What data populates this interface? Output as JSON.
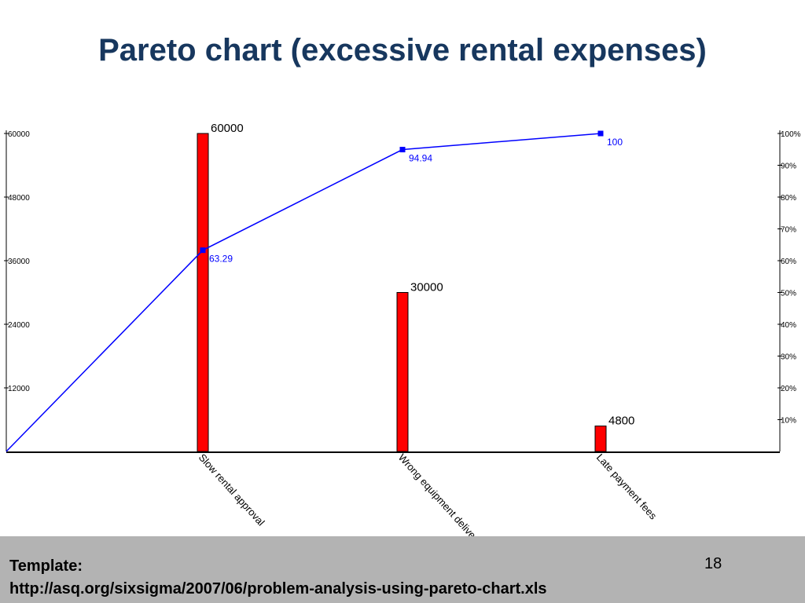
{
  "slide": {
    "title": "Pareto chart (excessive rental expenses)",
    "template_label": "Template:",
    "template_url": "http://asq.org/sixsigma/2007/06/problem-analysis-using-pareto-chart.xls",
    "page_number": "18"
  },
  "colors": {
    "title": "#17375e",
    "bar": "#ff0000",
    "line": "#0000ff",
    "footer": "#b3b3b3"
  },
  "chart_data": {
    "type": "bar",
    "categories": [
      "Slow rental approval",
      "Wrong equipment delivered",
      "Late payment fees"
    ],
    "category_tick_labels": [
      "Slow rental approval",
      "Wrong equipment deliver",
      "Late payment fees"
    ],
    "values": [
      60000,
      30000,
      4800
    ],
    "value_labels": [
      "60000",
      "30000",
      "4800"
    ],
    "cumulative_percent": [
      63.29,
      94.94,
      100
    ],
    "cumulative_labels": [
      "63.29",
      "94.94",
      "100"
    ],
    "left_axis": {
      "ylim": [
        0,
        60000
      ],
      "ticks": [
        "12000",
        "24000",
        "36000",
        "48000",
        "60000"
      ]
    },
    "right_axis": {
      "ylim": [
        0,
        100
      ],
      "ticks": [
        "10%",
        "20%",
        "30%",
        "40%",
        "50%",
        "60%",
        "70%",
        "80%",
        "90%",
        "100%"
      ]
    },
    "grid": false,
    "legend": "none"
  }
}
